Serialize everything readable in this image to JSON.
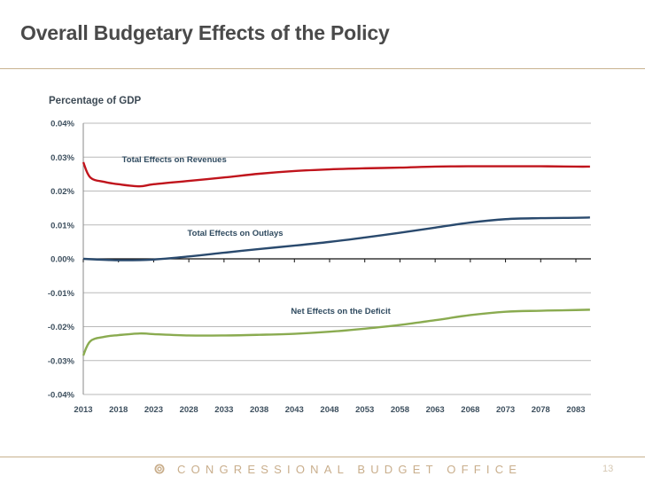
{
  "slide": {
    "title": "Overall Budgetary Effects of the Policy",
    "footer_org": "CONGRESSIONAL BUDGET OFFICE",
    "footer_logo_icon": "cbo-seal-icon",
    "page_number": "13",
    "colors": {
      "title": "#4a4a4a",
      "rule": "#c8b28f",
      "footer_text": "#c9ae8c"
    }
  },
  "chart_data": {
    "type": "line",
    "title": "Overall Budgetary Effects of the Policy",
    "ylabel": "Percentage of GDP",
    "xlabel": "",
    "ylim": [
      -0.04,
      0.04
    ],
    "xlim": [
      2013,
      2085
    ],
    "y_ticks": [
      0.04,
      0.03,
      0.02,
      0.01,
      0.0,
      -0.01,
      -0.02,
      -0.03,
      -0.04
    ],
    "y_tick_labels": [
      "0.04%",
      "0.03%",
      "0.02%",
      "0.01%",
      "0.00%",
      "-0.01%",
      "-0.02%",
      "-0.03%",
      "-0.04%"
    ],
    "x_ticks": [
      2013,
      2018,
      2023,
      2028,
      2033,
      2038,
      2043,
      2048,
      2053,
      2058,
      2063,
      2068,
      2073,
      2078,
      2083
    ],
    "x_tick_labels": [
      "2013",
      "2018",
      "2023",
      "2028",
      "2033",
      "2038",
      "2043",
      "2048",
      "2053",
      "2058",
      "2063",
      "2068",
      "2073",
      "2078",
      "2083"
    ],
    "grid": true,
    "legend": "none (inline series labels)",
    "series": [
      {
        "name": "Total Effects on Revenues",
        "color": "#c0141c",
        "x": [
          2013,
          2014,
          2016,
          2018,
          2021,
          2023,
          2028,
          2033,
          2038,
          2043,
          2048,
          2053,
          2058,
          2063,
          2068,
          2073,
          2078,
          2083,
          2085
        ],
        "values": [
          0.0285,
          0.024,
          0.0227,
          0.022,
          0.0214,
          0.022,
          0.023,
          0.024,
          0.0251,
          0.0259,
          0.0264,
          0.0267,
          0.0269,
          0.0272,
          0.0273,
          0.0273,
          0.0273,
          0.0272,
          0.0272
        ],
        "label_at": [
          2018.5,
          0.0285
        ]
      },
      {
        "name": "Total Effects on Outlays",
        "color": "#2a4a6e",
        "x": [
          2013,
          2018,
          2023,
          2028,
          2033,
          2038,
          2043,
          2048,
          2053,
          2058,
          2063,
          2068,
          2073,
          2078,
          2083,
          2085
        ],
        "values": [
          0.0,
          -0.0004,
          -0.0002,
          0.0007,
          0.0018,
          0.0029,
          0.0039,
          0.005,
          0.0063,
          0.0077,
          0.0092,
          0.0107,
          0.0117,
          0.012,
          0.0121,
          0.0122
        ],
        "label_at": [
          2027.8,
          0.0068
        ]
      },
      {
        "name": "Net Effects on the Deficit",
        "color": "#8aab50",
        "x": [
          2013,
          2014,
          2016,
          2018,
          2021,
          2023,
          2028,
          2033,
          2038,
          2043,
          2048,
          2053,
          2058,
          2063,
          2068,
          2073,
          2078,
          2083,
          2085
        ],
        "values": [
          -0.0285,
          -0.0243,
          -0.023,
          -0.0225,
          -0.022,
          -0.0222,
          -0.0226,
          -0.0226,
          -0.0224,
          -0.0221,
          -0.0215,
          -0.0206,
          -0.0195,
          -0.0181,
          -0.0166,
          -0.0156,
          -0.0153,
          -0.0151,
          -0.015
        ],
        "label_at": [
          2042.5,
          -0.0162
        ]
      }
    ]
  }
}
